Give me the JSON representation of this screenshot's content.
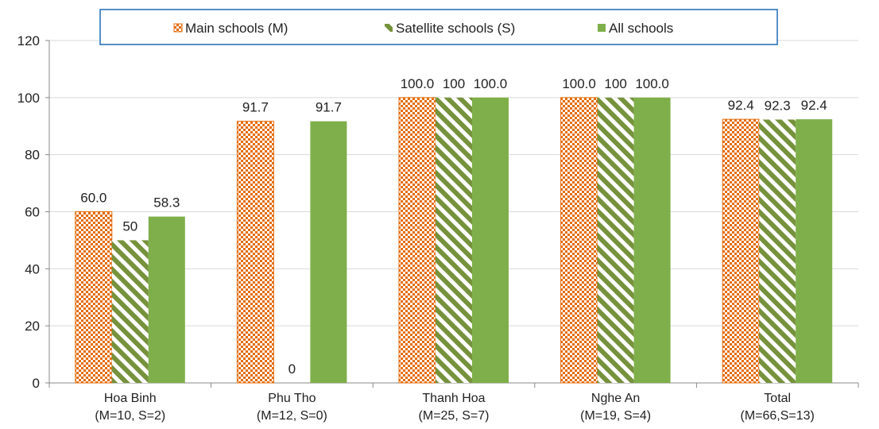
{
  "chart_data": {
    "type": "bar",
    "categories": [
      "Hoa Binh",
      "Phu Tho",
      "Thanh Hoa",
      "Nghe An",
      "Total"
    ],
    "category_sublabels": [
      "(M=10, S=2)",
      "(M=12, S=0)",
      "(M=25, S=7)",
      "(M=19, S=4)",
      "(M=66,S=13)"
    ],
    "series": [
      {
        "name": "Main schools (M)",
        "values": [
          60.0,
          91.7,
          100.0,
          100.0,
          92.4
        ],
        "labels": [
          "60.0",
          "91.7",
          "100.0",
          "100.0",
          "92.4"
        ],
        "color": "#E46C0A",
        "pattern": "checker"
      },
      {
        "name": "Satellite schools (S)",
        "values": [
          50,
          0,
          100,
          100,
          92.3
        ],
        "labels": [
          "50",
          "0",
          "100",
          "100",
          "92.3"
        ],
        "color": "#76923C",
        "pattern": "diagonal-stripes"
      },
      {
        "name": "All schools",
        "values": [
          58.3,
          91.7,
          100.0,
          100.0,
          92.4
        ],
        "labels": [
          "58.3",
          "91.7",
          "100.0",
          "100.0",
          "92.4"
        ],
        "color": "#7FAF4A",
        "pattern": "solid"
      }
    ],
    "ylim": [
      0,
      120
    ],
    "yticks": [
      0,
      20,
      40,
      60,
      80,
      100,
      120
    ],
    "xlabel": "",
    "ylabel": "",
    "title": "",
    "legend_position": "top",
    "grid": true
  }
}
